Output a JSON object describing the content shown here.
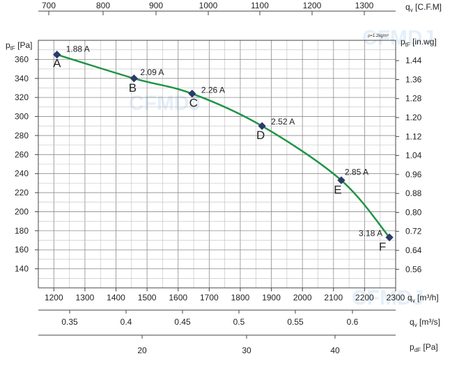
{
  "chart_data": {
    "type": "line",
    "x_axis": {
      "label": "q",
      "label_sub": "v",
      "label_unit": " [m³/h]",
      "min": 1150,
      "max": 2300,
      "ticks": [
        1200,
        1300,
        1400,
        1500,
        1600,
        1700,
        1800,
        1900,
        2000,
        2100,
        2200,
        2300
      ]
    },
    "y_axis_left": {
      "label": "p",
      "label_sub": "tF",
      "label_unit": " [Pa]",
      "min": 120,
      "max": 380,
      "ticks": [
        140,
        160,
        180,
        200,
        220,
        240,
        260,
        280,
        300,
        320,
        340,
        360
      ]
    },
    "y_axis_right": {
      "label": "p",
      "label_sub": "tF",
      "label_unit": " [in.wg]",
      "ticks": [
        "0.56",
        "0.64",
        "0.72",
        "0.80",
        "0.88",
        "0.96",
        "1.04",
        "1.12",
        "1.20",
        "1.28",
        "1.36",
        "1.44"
      ]
    },
    "top_axis": {
      "label": "q",
      "label_sub": "v",
      "label_unit": " [C.F.M]",
      "ticks": [
        "700",
        "800",
        "900",
        "1000",
        "1100",
        "1200",
        "1300"
      ]
    },
    "bottom_axis_2": {
      "label": "q",
      "label_sub": "v",
      "label_unit": " [m³/s]",
      "ticks": [
        "0.35",
        "0.4",
        "0.45",
        "0.5",
        "0.55",
        "0.6"
      ]
    },
    "bottom_axis_3": {
      "label": "p",
      "label_sub": "dF",
      "label_unit": " [Pa]",
      "ticks": [
        "20",
        "30",
        "40"
      ]
    },
    "density_note": "ρ=1.2kg/m³",
    "watermarks": [
      "CFMDJ",
      "CFMDJ",
      "CFMDJ"
    ],
    "grid": true,
    "curve_color": "#1e9444",
    "marker_color": "#2b3a6b",
    "points": [
      {
        "label": "A",
        "current": "1.88 A",
        "x": 1210,
        "y": 365
      },
      {
        "label": "B",
        "current": "2.09 A",
        "x": 1458,
        "y": 340
      },
      {
        "label": "C",
        "current": "2.26 A",
        "x": 1645,
        "y": 324
      },
      {
        "label": "D",
        "current": "2.52 A",
        "x": 1870,
        "y": 290
      },
      {
        "label": "E",
        "current": "2.85 A",
        "x": 2125,
        "y": 233
      },
      {
        "label": "F",
        "current": "3.18 A",
        "x": 2280,
        "y": 173
      }
    ]
  }
}
